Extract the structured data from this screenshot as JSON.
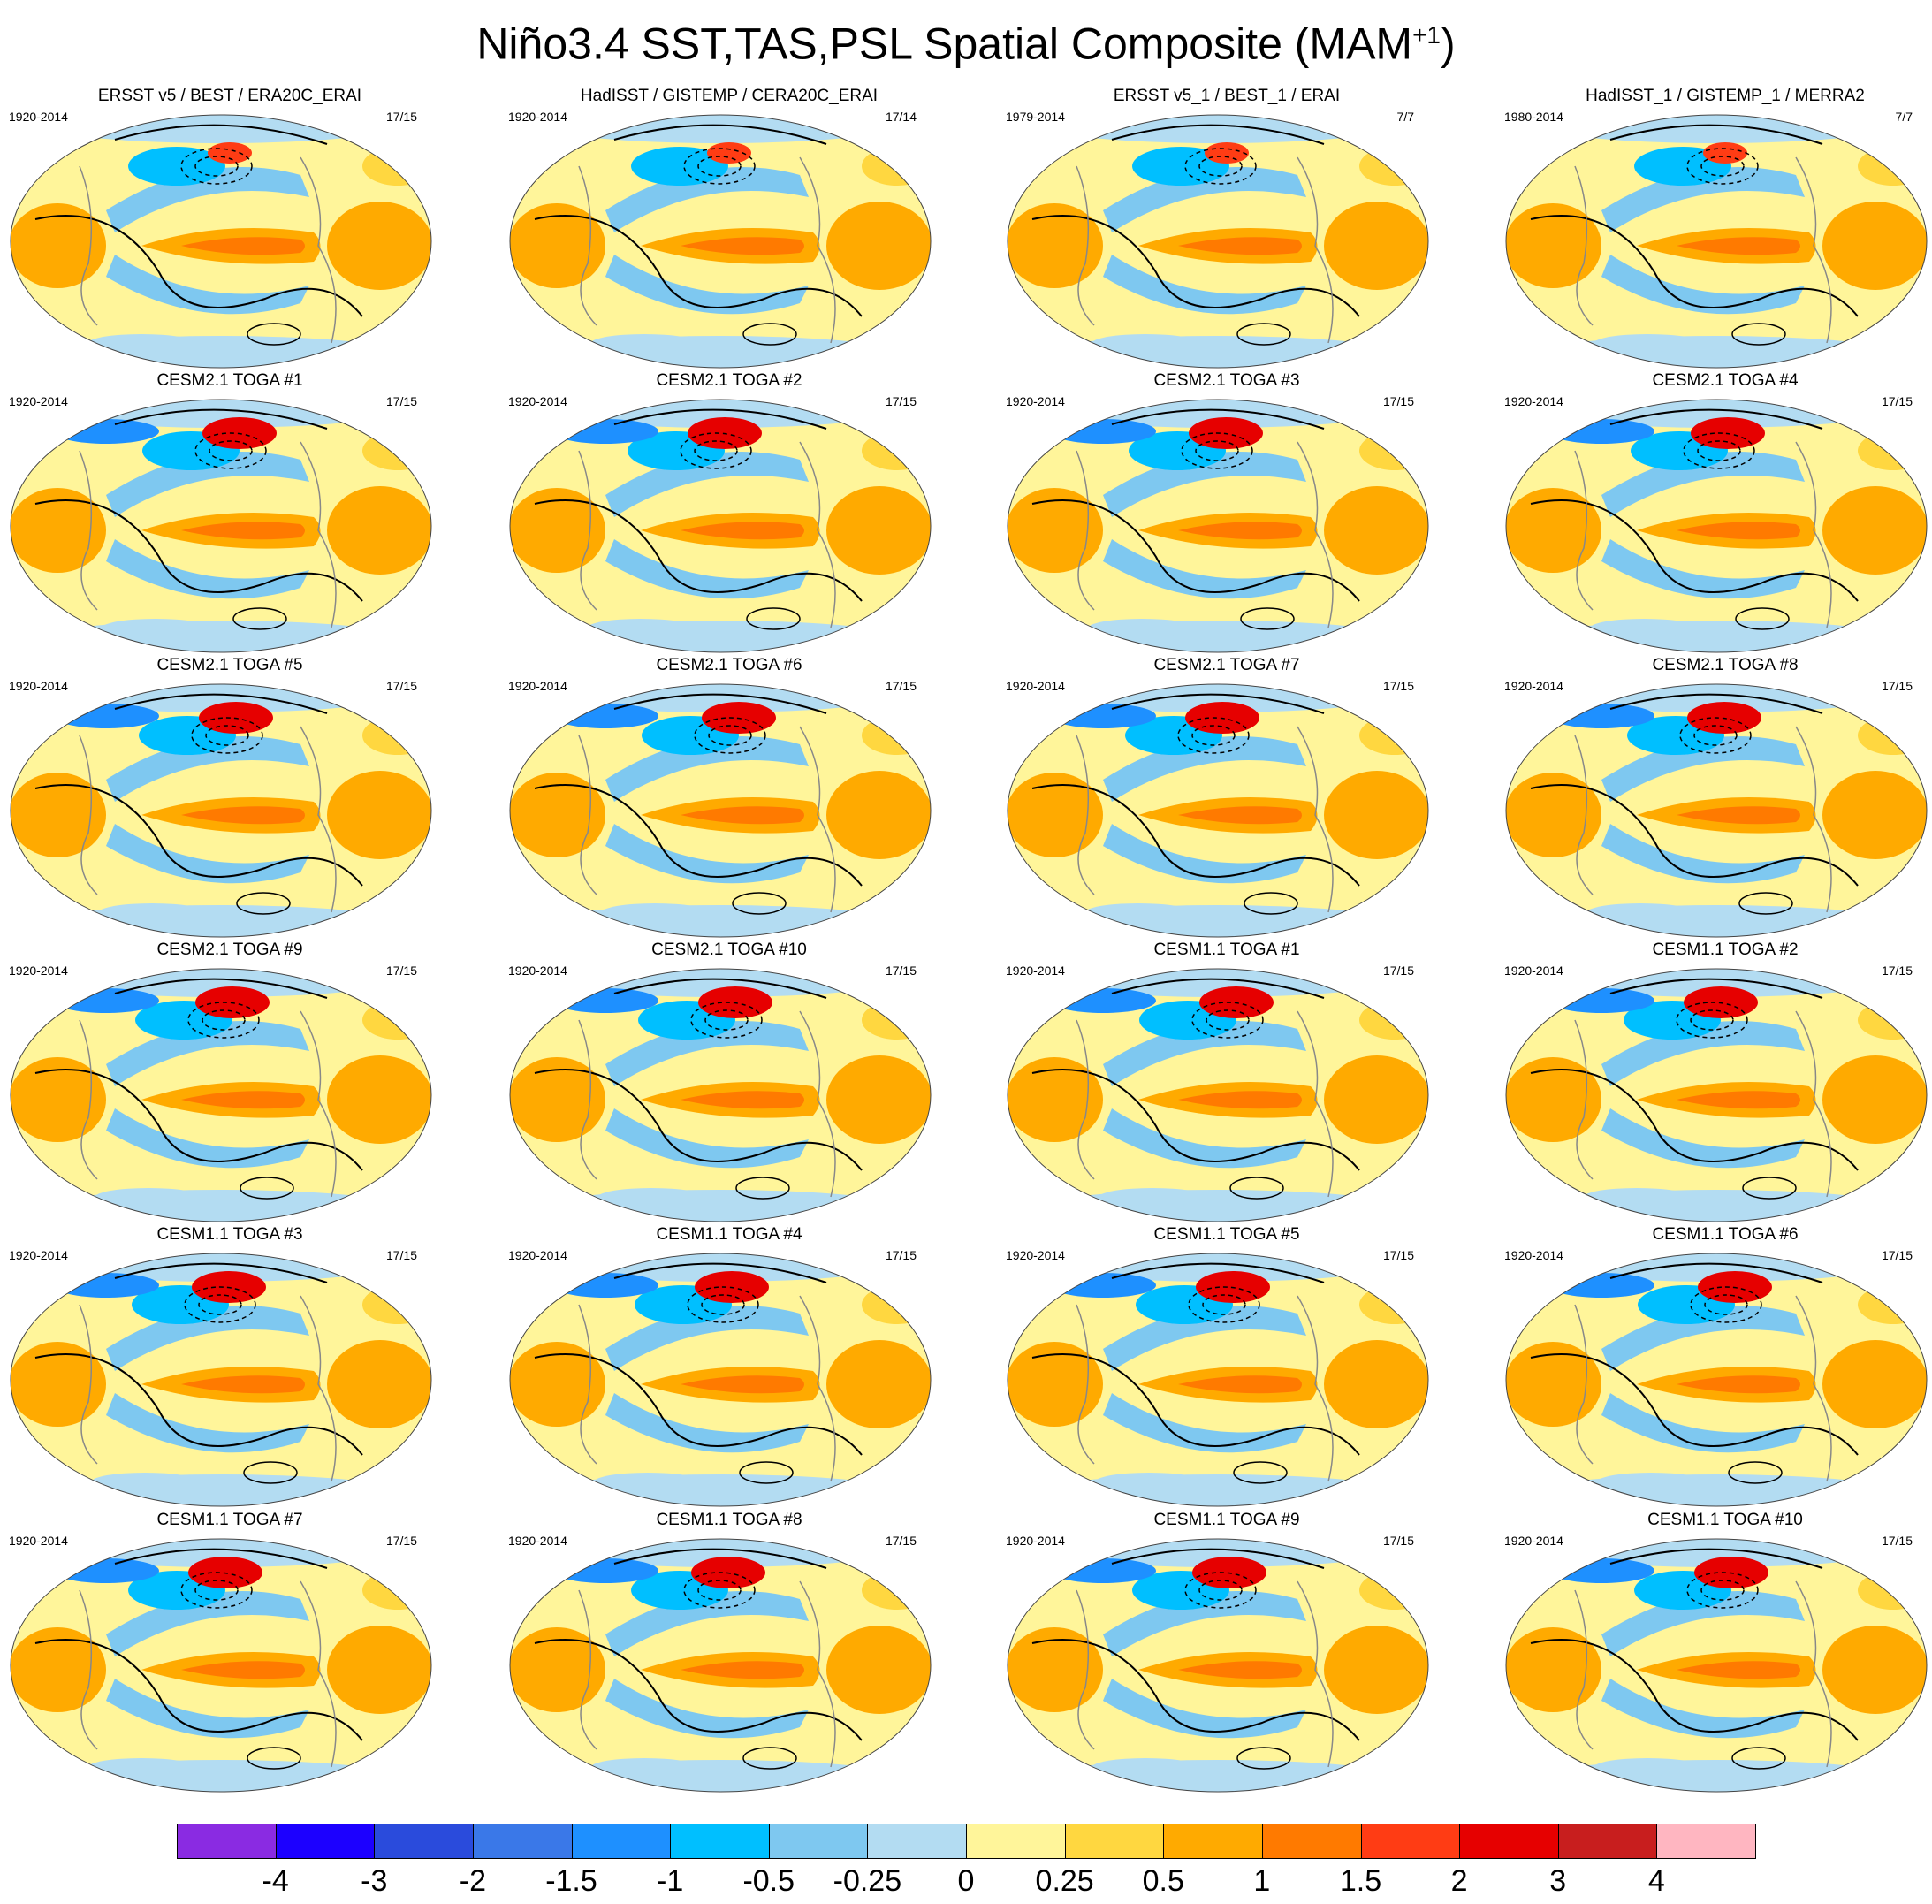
{
  "title": {
    "text": "Niño3.4 SST,TAS,PSL Spatial Composite (MAM",
    "superscript": "+1",
    "suffix": ")"
  },
  "chart_data": {
    "type": "heatmap",
    "description": "Composite maps: shaded SST/TAS anomalies with PSL contours",
    "panels": [
      {
        "title": "ERSST v5 / BEST / ERA20C_ERAI",
        "years": "1920-2014",
        "count": "17/15"
      },
      {
        "title": "HadISST / GISTEMP / CERA20C_ERAI",
        "years": "1920-2014",
        "count": "17/14"
      },
      {
        "title": "ERSST v5_1 / BEST_1 / ERAI",
        "years": "1979-2014",
        "count": "7/7"
      },
      {
        "title": "HadISST_1 / GISTEMP_1 / MERRA2",
        "years": "1980-2014",
        "count": "7/7"
      },
      {
        "title": "CESM2.1 TOGA #1",
        "years": "1920-2014",
        "count": "17/15"
      },
      {
        "title": "CESM2.1 TOGA #2",
        "years": "1920-2014",
        "count": "17/15"
      },
      {
        "title": "CESM2.1 TOGA #3",
        "years": "1920-2014",
        "count": "17/15"
      },
      {
        "title": "CESM2.1 TOGA #4",
        "years": "1920-2014",
        "count": "17/15"
      },
      {
        "title": "CESM2.1 TOGA #5",
        "years": "1920-2014",
        "count": "17/15"
      },
      {
        "title": "CESM2.1 TOGA #6",
        "years": "1920-2014",
        "count": "17/15"
      },
      {
        "title": "CESM2.1 TOGA #7",
        "years": "1920-2014",
        "count": "17/15"
      },
      {
        "title": "CESM2.1 TOGA #8",
        "years": "1920-2014",
        "count": "17/15"
      },
      {
        "title": "CESM2.1 TOGA #9",
        "years": "1920-2014",
        "count": "17/15"
      },
      {
        "title": "CESM2.1 TOGA #10",
        "years": "1920-2014",
        "count": "17/15"
      },
      {
        "title": "CESM1.1 TOGA #1",
        "years": "1920-2014",
        "count": "17/15"
      },
      {
        "title": "CESM1.1 TOGA #2",
        "years": "1920-2014",
        "count": "17/15"
      },
      {
        "title": "CESM1.1 TOGA #3",
        "years": "1920-2014",
        "count": "17/15"
      },
      {
        "title": "CESM1.1 TOGA #4",
        "years": "1920-2014",
        "count": "17/15"
      },
      {
        "title": "CESM1.1 TOGA #5",
        "years": "1920-2014",
        "count": "17/15"
      },
      {
        "title": "CESM1.1 TOGA #6",
        "years": "1920-2014",
        "count": "17/15"
      },
      {
        "title": "CESM1.1 TOGA #7",
        "years": "1920-2014",
        "count": "17/15"
      },
      {
        "title": "CESM1.1 TOGA #8",
        "years": "1920-2014",
        "count": "17/15"
      },
      {
        "title": "CESM1.1 TOGA #9",
        "years": "1920-2014",
        "count": "17/15"
      },
      {
        "title": "CESM1.1 TOGA #10",
        "years": "1920-2014",
        "count": "17/15"
      }
    ],
    "colorbar": {
      "levels": [
        "-4",
        "-3",
        "-2",
        "-1.5",
        "-1",
        "-0.5",
        "-0.25",
        "0",
        "0.25",
        "0.5",
        "1",
        "1.5",
        "2",
        "3",
        "4"
      ],
      "colors": [
        "#8a2be2",
        "#1c00ff",
        "#2a4bdc",
        "#3a78e8",
        "#1e90ff",
        "#00bfff",
        "#7ec8f0",
        "#b3dcf2",
        "#fff59a",
        "#ffd740",
        "#ffaa00",
        "#ff7a00",
        "#ff3c14",
        "#e60000",
        "#c81e1e",
        "#ffb6c1"
      ]
    }
  }
}
